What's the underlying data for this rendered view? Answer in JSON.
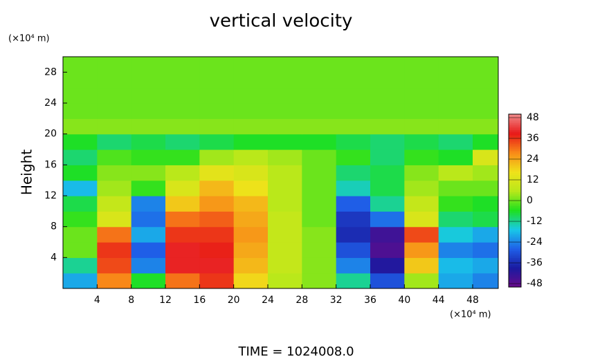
{
  "chart_data": {
    "type": "contour",
    "title": "vertical velocity",
    "yunit": "(×10⁴ m)",
    "xunit": "(×10⁴ m)",
    "ylabel": "Height",
    "footer": "TIME = 1024008.0",
    "x": [
      2,
      6,
      10,
      14,
      18,
      22,
      26,
      30,
      34,
      38,
      42,
      46,
      50
    ],
    "y": [
      1,
      3,
      5,
      7,
      9,
      11,
      13,
      15,
      17,
      19,
      21,
      23,
      25,
      27,
      29
    ],
    "z": [
      [
        -20,
        28,
        -6,
        30,
        36,
        18,
        6,
        2,
        -12,
        -30,
        4,
        -20,
        -24
      ],
      [
        -12,
        34,
        -24,
        40,
        40,
        22,
        8,
        2,
        -24,
        -40,
        20,
        -18,
        -20
      ],
      [
        0,
        36,
        -28,
        40,
        38,
        24,
        8,
        2,
        -30,
        -46,
        26,
        -24,
        -26
      ],
      [
        0,
        30,
        -20,
        36,
        36,
        26,
        8,
        2,
        -36,
        -44,
        34,
        -16,
        -20
      ],
      [
        -4,
        12,
        -26,
        30,
        32,
        24,
        8,
        0,
        -34,
        -26,
        12,
        -10,
        -8
      ],
      [
        -8,
        8,
        -24,
        20,
        26,
        22,
        6,
        0,
        -28,
        -12,
        8,
        -4,
        -6
      ],
      [
        -18,
        4,
        -4,
        12,
        22,
        16,
        6,
        0,
        -14,
        -8,
        4,
        0,
        0
      ],
      [
        -6,
        2,
        2,
        6,
        14,
        12,
        6,
        0,
        -10,
        -8,
        2,
        6,
        4
      ],
      [
        -10,
        -2,
        -4,
        -4,
        4,
        6,
        4,
        0,
        -4,
        -10,
        -4,
        -6,
        12
      ],
      [
        -6,
        -10,
        -8,
        -10,
        -8,
        -6,
        -6,
        -6,
        -8,
        -10,
        -8,
        -10,
        -6
      ],
      [
        2,
        2,
        2,
        2,
        2,
        2,
        2,
        2,
        2,
        2,
        2,
        2,
        2
      ],
      [
        0,
        0,
        0,
        0,
        0,
        0,
        0,
        0,
        0,
        0,
        0,
        0,
        0
      ],
      [
        0,
        0,
        0,
        0,
        0,
        0,
        0,
        0,
        0,
        0,
        0,
        0,
        0
      ],
      [
        0,
        0,
        0,
        0,
        0,
        0,
        0,
        0,
        0,
        0,
        0,
        0,
        0
      ],
      [
        0,
        0,
        0,
        0,
        0,
        0,
        0,
        0,
        0,
        0,
        0,
        0,
        0
      ]
    ],
    "xlim": [
      0,
      51
    ],
    "ylim": [
      0,
      30
    ],
    "xticks": [
      4,
      8,
      12,
      16,
      20,
      24,
      28,
      32,
      36,
      40,
      44,
      48
    ],
    "yticks": [
      4,
      8,
      12,
      16,
      20,
      24,
      28
    ],
    "clim": [
      -50,
      50
    ],
    "cticks": [
      -48,
      -36,
      -24,
      -12,
      0,
      12,
      24,
      36,
      48
    ],
    "colormap": [
      "#6a0a8a",
      "#1a1aa0",
      "#1f5fe8",
      "#18c8e8",
      "#1ee01e",
      "#b8e81a",
      "#f0e21a",
      "#f88a18",
      "#e81818",
      "#f08a8a"
    ]
  }
}
